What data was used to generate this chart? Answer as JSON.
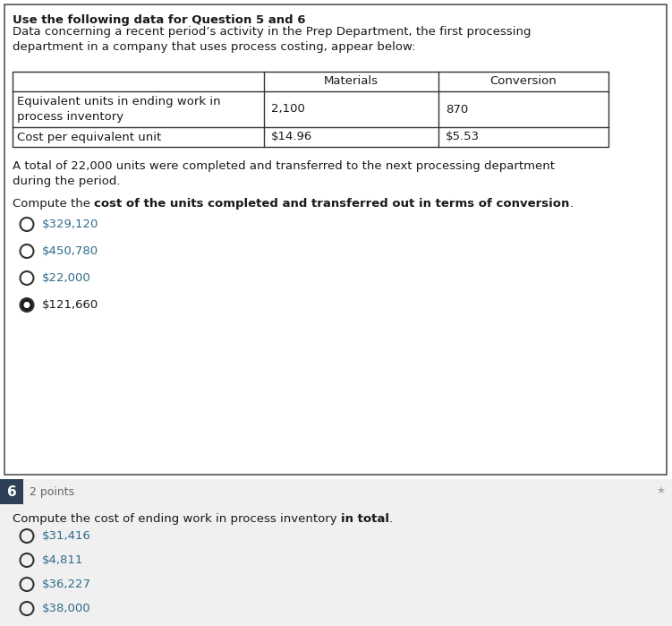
{
  "title_bold": "Use the following data for Question 5 and 6",
  "title_normal": "Data concerning a recent period’s activity in the Prep Department, the first processing\ndepartment in a company that uses process costing, appear below:",
  "table_row1_label": "Equivalent units in ending work in\nprocess inventory",
  "table_row1_mat": "2,100",
  "table_row1_conv": "870",
  "table_row2_label": "Cost per equivalent unit",
  "table_row2_mat": "$14.96",
  "table_row2_conv": "$5.53",
  "paragraph": "A total of 22,000 units were completed and transferred to the next processing department\nduring the period.",
  "q5_normal": "Compute the ",
  "q5_bold": "cost of the units completed and transferred out in terms of conversion",
  "q5_end": ".",
  "q5_options": [
    "$329,120",
    "$450,780",
    "$22,000",
    "$121,660"
  ],
  "q5_selected": 3,
  "q6_number": "6",
  "q6_points": "2 points",
  "q6_normal": "Compute the cost of ending work in process inventory ",
  "q6_bold": "in total",
  "q6_end": ".",
  "q6_options": [
    "$31,416",
    "$4,811",
    "$36,227",
    "$38,000"
  ],
  "q6_selected": -1,
  "text_color": "#1a1a1a",
  "teal_color": "#2e6b8a",
  "q6_bar_color": "#2e4057",
  "q6_bg_color": "#f0f0f0",
  "border_color": "#555555",
  "table_border_color": "#333333"
}
